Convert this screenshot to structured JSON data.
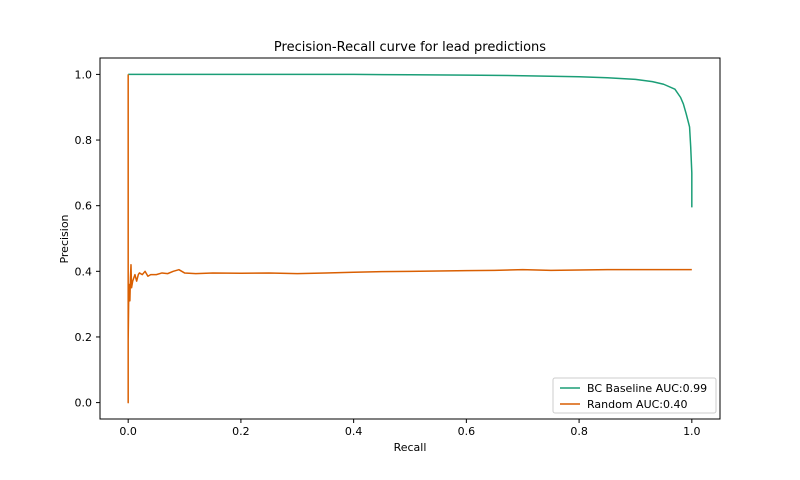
{
  "chart_data": {
    "type": "line",
    "title": "Precision-Recall curve for lead predictions",
    "xlabel": "Recall",
    "ylabel": "Precision",
    "xlim": [
      -0.05,
      1.05
    ],
    "ylim": [
      -0.05,
      1.05
    ],
    "xticks": [
      0.0,
      0.2,
      0.4,
      0.6,
      0.8,
      1.0
    ],
    "xtick_labels": [
      "0.0",
      "0.2",
      "0.4",
      "0.6",
      "0.8",
      "1.0"
    ],
    "yticks": [
      0.0,
      0.2,
      0.4,
      0.6,
      0.8,
      1.0
    ],
    "ytick_labels": [
      "0.0",
      "0.2",
      "0.4",
      "0.6",
      "0.8",
      "1.0"
    ],
    "grid": false,
    "legend_position": "lower-right",
    "series": [
      {
        "name": "BC Baseline AUC:0.99",
        "color": "#1b9e77",
        "x": [
          0.0,
          0.0,
          0.1,
          0.2,
          0.3,
          0.4,
          0.5,
          0.6,
          0.7,
          0.8,
          0.85,
          0.9,
          0.93,
          0.95,
          0.97,
          0.98,
          0.985,
          0.99,
          0.993,
          0.996,
          0.998,
          1.0,
          1.0
        ],
        "y": [
          1.0,
          1.0,
          1.0,
          1.0,
          1.0,
          1.0,
          0.999,
          0.998,
          0.996,
          0.993,
          0.99,
          0.985,
          0.978,
          0.97,
          0.955,
          0.93,
          0.91,
          0.88,
          0.86,
          0.84,
          0.78,
          0.7,
          0.595
        ]
      },
      {
        "name": "Random AUC:0.40",
        "color": "#d95f02",
        "x": [
          0.0,
          0.0,
          0.0,
          0.001,
          0.002,
          0.003,
          0.004,
          0.005,
          0.006,
          0.008,
          0.01,
          0.012,
          0.015,
          0.018,
          0.02,
          0.025,
          0.03,
          0.035,
          0.04,
          0.05,
          0.06,
          0.07,
          0.08,
          0.09,
          0.1,
          0.12,
          0.15,
          0.2,
          0.25,
          0.3,
          0.35,
          0.4,
          0.45,
          0.5,
          0.55,
          0.6,
          0.65,
          0.7,
          0.75,
          0.8,
          0.85,
          0.9,
          0.95,
          1.0
        ],
        "y": [
          1.0,
          0.0,
          0.19,
          0.33,
          0.36,
          0.31,
          0.38,
          0.42,
          0.35,
          0.37,
          0.38,
          0.39,
          0.37,
          0.39,
          0.395,
          0.39,
          0.4,
          0.385,
          0.39,
          0.39,
          0.395,
          0.393,
          0.4,
          0.405,
          0.395,
          0.393,
          0.395,
          0.394,
          0.395,
          0.393,
          0.395,
          0.397,
          0.399,
          0.4,
          0.401,
          0.402,
          0.403,
          0.405,
          0.403,
          0.404,
          0.405,
          0.405,
          0.405,
          0.405
        ]
      }
    ]
  }
}
